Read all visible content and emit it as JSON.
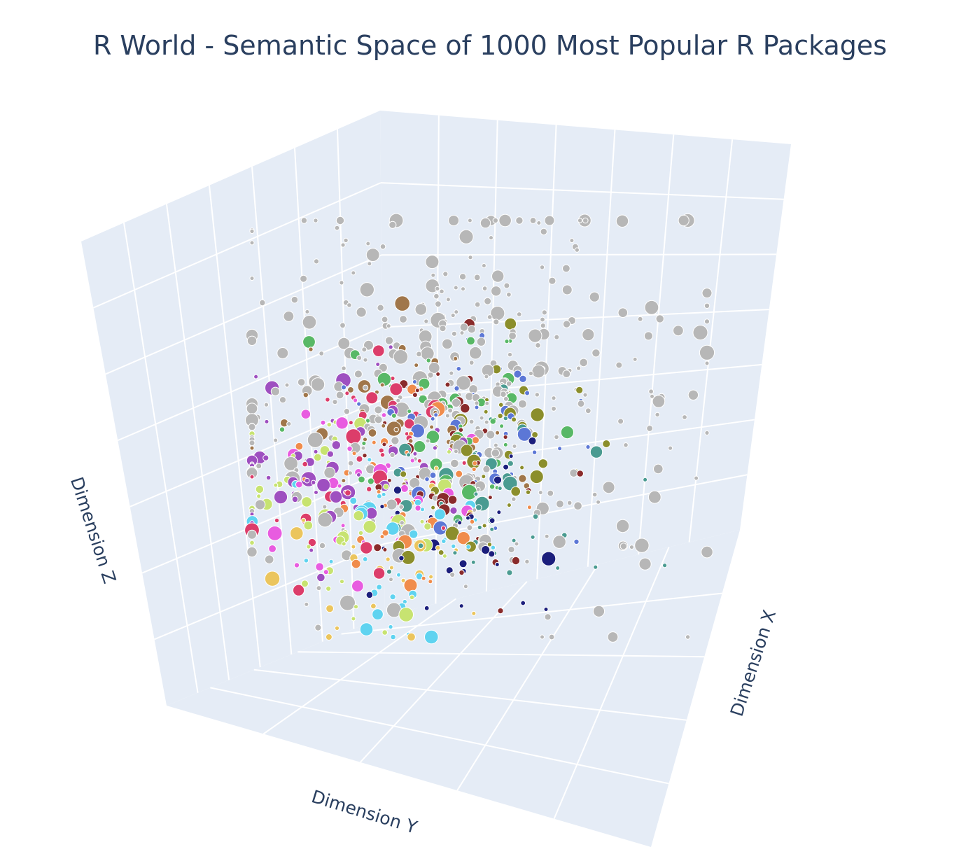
{
  "chart_data": {
    "type": "scatter3d",
    "title": "R World - Semantic Space of 1000 Most Popular R Packages",
    "xlabel": "Dimension X",
    "ylabel": "Dimension Y",
    "zlabel": "Dimension Z",
    "grid": true,
    "legend": "none",
    "tick_labels": "hidden",
    "background": "#e5ecf6",
    "point_count": 1000,
    "cluster_colors": [
      "#b7b7b7",
      "#dc3d6a",
      "#f08c4c",
      "#1b1e7c",
      "#5c77d6",
      "#9e4fc0",
      "#e85ce0",
      "#5fd3f0",
      "#58b866",
      "#8b8e2b",
      "#c7e371",
      "#ebc55d",
      "#a0764a",
      "#892b2b",
      "#4a9b91"
    ]
  }
}
